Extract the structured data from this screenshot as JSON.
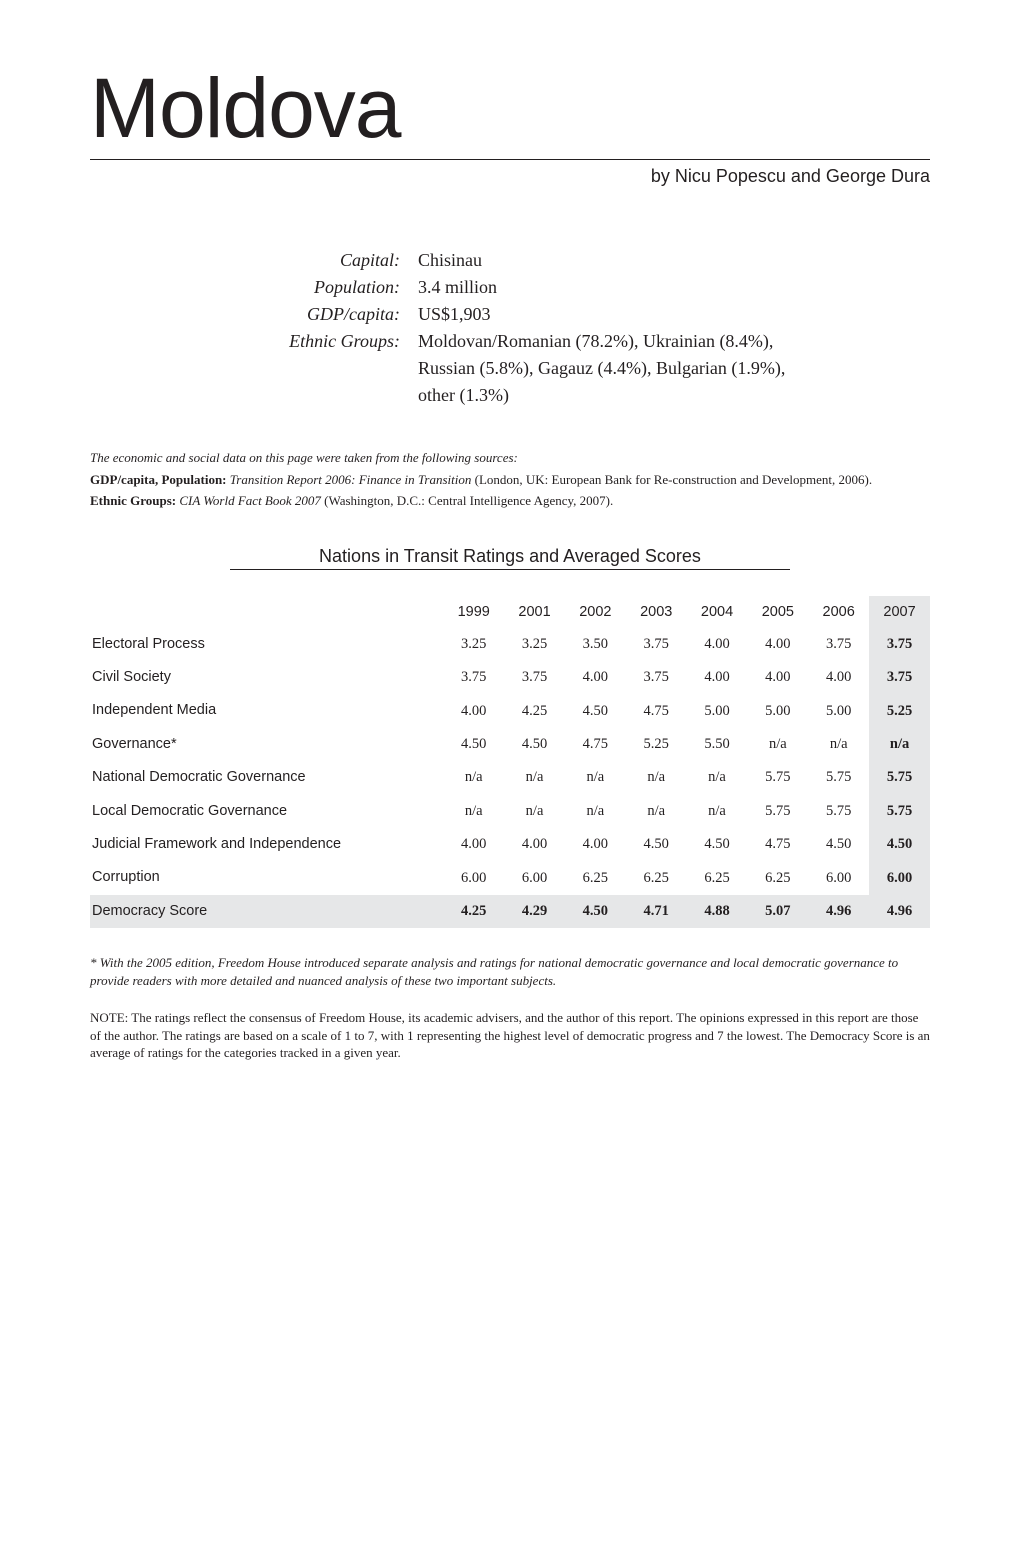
{
  "title": "Moldova",
  "byline": "by Nicu Popescu and George Dura",
  "meta": {
    "rows": [
      {
        "label": "Capital:",
        "value": "Chisinau"
      },
      {
        "label": "Population:",
        "value": "3.4 million"
      },
      {
        "label": "GDP/capita:",
        "value": "US$1,903"
      },
      {
        "label": "Ethnic Groups:",
        "value": "Moldovan/Romanian (78.2%), Ukrainian (8.4%), Russian (5.8%), Gagauz (4.4%), Bulgarian (1.9%), other (1.3%)"
      }
    ]
  },
  "sources": {
    "intro": "The economic and social data on this page were taken from the following sources:",
    "gdp_label": "GDP/capita, Population:",
    "gdp_title": "Transition Report 2006: Finance in Transition",
    "gdp_rest": " (London, UK: European Bank for Re-construction and Development, 2006).",
    "ethnic_label": "Ethnic Groups:",
    "ethnic_title": "CIA World Fact Book 2007",
    "ethnic_rest": " (Washington, D.C.: Central Intelligence Agency, 2007)."
  },
  "table": {
    "heading": "Nations in Transit Ratings and Averaged Scores",
    "years": [
      "1999",
      "2001",
      "2002",
      "2003",
      "2004",
      "2005",
      "2006",
      "2007"
    ],
    "highlight_col_index": 7,
    "highlight_row_index": 9,
    "rows": [
      {
        "label": "Electoral Process",
        "values": [
          "3.25",
          "3.25",
          "3.50",
          "3.75",
          "4.00",
          "4.00",
          "3.75",
          "3.75"
        ]
      },
      {
        "label": "Civil Society",
        "values": [
          "3.75",
          "3.75",
          "4.00",
          "3.75",
          "4.00",
          "4.00",
          "4.00",
          "3.75"
        ]
      },
      {
        "label": "Independent Media",
        "values": [
          "4.00",
          "4.25",
          "4.50",
          "4.75",
          "5.00",
          "5.00",
          "5.00",
          "5.25"
        ]
      },
      {
        "label": "Governance*",
        "values": [
          "4.50",
          "4.50",
          "4.75",
          "5.25",
          "5.50",
          "n/a",
          "n/a",
          "n/a"
        ]
      },
      {
        "label": "National Democratic Governance",
        "values": [
          "n/a",
          "n/a",
          "n/a",
          "n/a",
          "n/a",
          "5.75",
          "5.75",
          "5.75"
        ]
      },
      {
        "label": "Local Democratic Governance",
        "values": [
          "n/a",
          "n/a",
          "n/a",
          "n/a",
          "n/a",
          "5.75",
          "5.75",
          "5.75"
        ]
      },
      {
        "label": "Judicial Framework and Independence",
        "values": [
          "4.00",
          "4.00",
          "4.00",
          "4.50",
          "4.50",
          "4.75",
          "4.50",
          "4.50"
        ]
      },
      {
        "label": "Corruption",
        "values": [
          "6.00",
          "6.00",
          "6.25",
          "6.25",
          "6.25",
          "6.25",
          "6.00",
          "6.00"
        ]
      },
      {
        "label": "Democracy Score",
        "values": [
          "4.25",
          "4.29",
          "4.50",
          "4.71",
          "4.88",
          "5.07",
          "4.96",
          "4.96"
        ]
      }
    ]
  },
  "footnote": "*  With the 2005 edition, Freedom House introduced separate analysis and ratings for national democratic governance and local democratic governance to provide readers with more detailed and nuanced analysis of these two important subjects.",
  "note": "NOTE: The ratings reflect the consensus of Freedom House, its academic advisers, and the author of this report. The opinions expressed in this report are those of the author. The ratings are based on a scale of 1 to 7, with 1 representing the highest level of democratic progress and 7 the lowest. The Democracy Score is an average of ratings for the categories tracked in a given year."
}
